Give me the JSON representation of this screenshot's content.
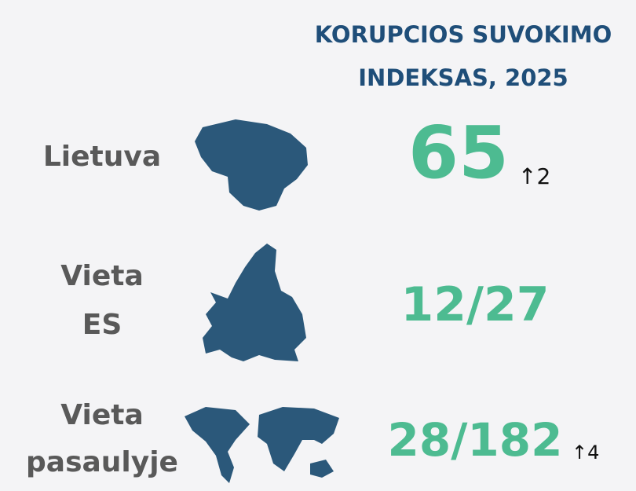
{
  "header": {
    "title_lines": [
      "KORUPCIOS SUVOKIMO",
      "INDEKSAS, 2025"
    ]
  },
  "rows": [
    {
      "label_lines": [
        "Lietuva"
      ],
      "value": "65",
      "change": "↑2"
    },
    {
      "label_lines": [
        "Vieta",
        "ES"
      ],
      "value": "12/27"
    },
    {
      "label_lines": [
        "Vieta",
        "pasaulyje"
      ],
      "value": "28/182",
      "change": "↑4"
    }
  ]
}
